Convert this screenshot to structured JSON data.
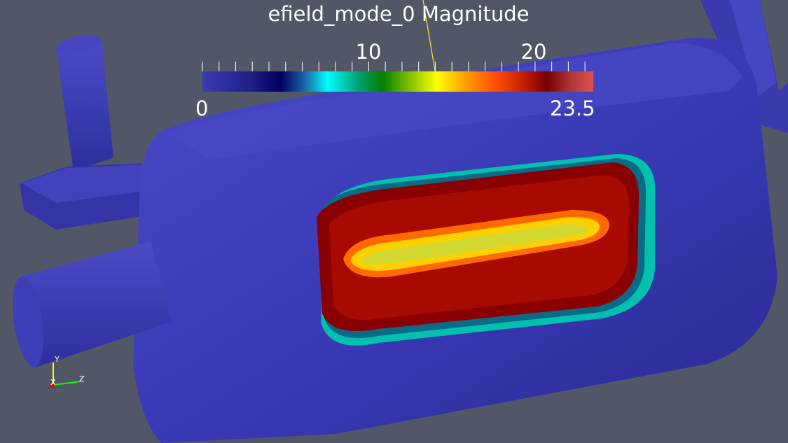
{
  "scalar_bar": {
    "title": "efield_mode_0 Magnitude",
    "ticks": [
      {
        "value": 10,
        "label": "10"
      },
      {
        "value": 20,
        "label": "20"
      }
    ],
    "range_min": {
      "value": 0,
      "label": "0"
    },
    "range_max": {
      "value": 23.5,
      "label": "23.5"
    },
    "colormap": "jet",
    "colormap_stops": [
      "#3c3cb4",
      "#202088",
      "#000060",
      "#1860a8",
      "#00ffff",
      "#00a070",
      "#008000",
      "#80c000",
      "#ffff00",
      "#ffa000",
      "#ff5000",
      "#c81e00",
      "#780000",
      "#b43c3c",
      "#e05050"
    ]
  },
  "orientation_axes": {
    "x_label": "X",
    "y_label": "Y",
    "z_label": "Z",
    "x_color": "#ff0000",
    "y_color": "#ffff00",
    "z_color": "#00ff00"
  },
  "colors": {
    "background": "#525767",
    "surface_low": "#3c3cb4"
  }
}
